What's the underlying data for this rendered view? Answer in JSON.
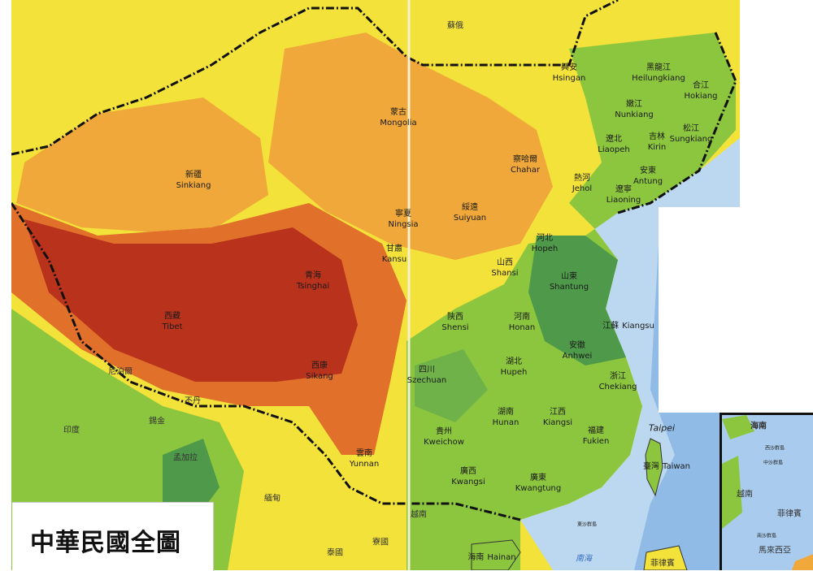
{
  "title": "中華民國全圖",
  "colors": {
    "lowland": "#8cc63f",
    "plain": "#4f9a4a",
    "hills": "#f3e23a",
    "upland": "#f0a83a",
    "mountain": "#e0702a",
    "plateau": "#b8321c",
    "sea": "#bcd8f0",
    "deep_sea": "#6fa6dc"
  },
  "provinces": [
    {
      "zh": "興安",
      "en": "Hsingan"
    },
    {
      "zh": "黑龍江",
      "en": "Heilungkiang"
    },
    {
      "zh": "合江",
      "en": "Hokiang"
    },
    {
      "zh": "嫩江",
      "en": "Nunkiang"
    },
    {
      "zh": "吉林",
      "en": "Kirin"
    },
    {
      "zh": "松江",
      "en": "Sungkiang"
    },
    {
      "zh": "遼北",
      "en": "Liaopeh"
    },
    {
      "zh": "蒙古",
      "en": "Mongolia"
    },
    {
      "zh": "察哈爾",
      "en": "Chahar"
    },
    {
      "zh": "熱河",
      "en": "Jehol"
    },
    {
      "zh": "安東",
      "en": "Antung"
    },
    {
      "zh": "遼寧",
      "en": "Liaoning"
    },
    {
      "zh": "新疆",
      "en": "Sinkiang"
    },
    {
      "zh": "寧夏",
      "en": "Ningsia"
    },
    {
      "zh": "綏遠",
      "en": "Suiyuan"
    },
    {
      "zh": "甘肅",
      "en": "Kansu"
    },
    {
      "zh": "河北",
      "en": "Hopeh"
    },
    {
      "zh": "山西",
      "en": "Shansi"
    },
    {
      "zh": "山東",
      "en": "Shantung"
    },
    {
      "zh": "青海",
      "en": "Tsinghai"
    },
    {
      "zh": "西藏",
      "en": "Tibet"
    },
    {
      "zh": "陝西",
      "en": "Shensi"
    },
    {
      "zh": "河南",
      "en": "Honan"
    },
    {
      "zh": "江蘇",
      "en": "Kiangsu"
    },
    {
      "zh": "安徽",
      "en": "Anhwei"
    },
    {
      "zh": "西康",
      "en": "Sikang"
    },
    {
      "zh": "四川",
      "en": "Szechuan"
    },
    {
      "zh": "湖北",
      "en": "Hupeh"
    },
    {
      "zh": "浙江",
      "en": "Chekiang"
    },
    {
      "zh": "湖南",
      "en": "Hunan"
    },
    {
      "zh": "江西",
      "en": "Kiangsi"
    },
    {
      "zh": "福建",
      "en": "Fukien"
    },
    {
      "zh": "貴州",
      "en": "Kweichow"
    },
    {
      "zh": "雲南",
      "en": "Yunnan"
    },
    {
      "zh": "廣西",
      "en": "Kwangsi"
    },
    {
      "zh": "廣東",
      "en": "Kwangtung"
    },
    {
      "zh": "臺灣",
      "en": "Taiwan"
    },
    {
      "zh": "海南",
      "en": "Hainan"
    }
  ],
  "capital": "Taipei",
  "foreign": [
    "蘇俄",
    "尼泊爾",
    "不丹",
    "錫金",
    "印度",
    "孟加拉",
    "緬甸",
    "越南",
    "寮國",
    "泰國",
    "菲律賓"
  ],
  "islands": [
    "東沙群島"
  ],
  "sea_labels": [
    "南海"
  ],
  "inset": {
    "title": "海南",
    "labels": [
      "西沙群島",
      "中沙群島",
      "越南",
      "菲律賓",
      "南沙群島",
      "馬來西亞"
    ]
  }
}
